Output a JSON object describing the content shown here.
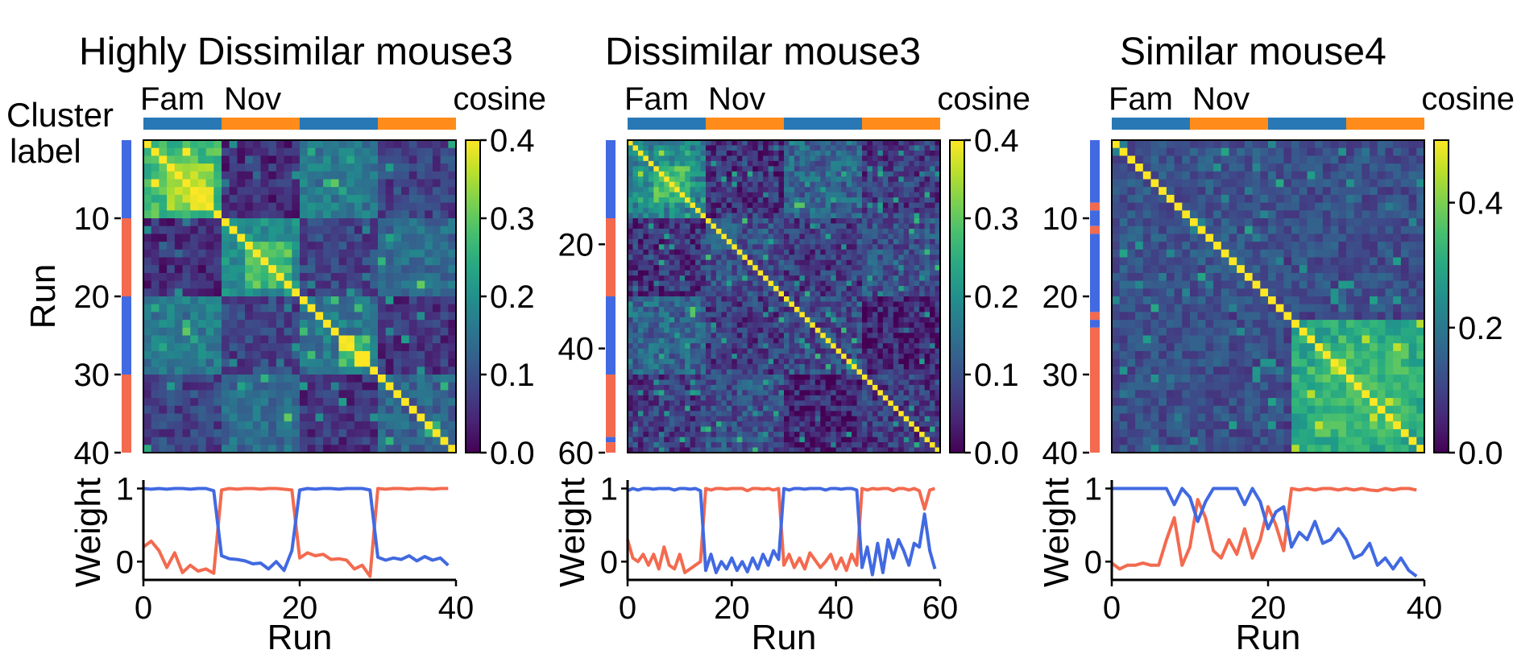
{
  "figure": {
    "side_label_line1": "Cluster",
    "side_label_line2": "label",
    "fam_label": "Fam",
    "nov_label": "Nov",
    "cbar_label": "cosine",
    "colors": {
      "fam_bar": "#2878b5",
      "nov_bar": "#ff8c1a",
      "fam_text": "#2b7bba",
      "nov_text": "#f28a1c",
      "cluster_blue": "#4169e1",
      "cluster_red": "#f36a4f",
      "weight_blue": "#4169e1",
      "weight_red": "#f36a4f"
    }
  },
  "chart_data": [
    {
      "type": "heatmap",
      "title": "Highly Dissimilar mouse3",
      "n": 40,
      "ylabel": "Run",
      "yticks": [
        10,
        20,
        30,
        40
      ],
      "cbar_range": [
        0,
        0.4
      ],
      "cbar_ticks": [
        "0.0",
        "0.1",
        "0.2",
        "0.3",
        "0.4"
      ],
      "cbar_tick_values": [
        0,
        0.1,
        0.2,
        0.3,
        0.4
      ],
      "blocks": [
        {
          "start": 0,
          "end": 10,
          "type": "fam"
        },
        {
          "start": 10,
          "end": 20,
          "type": "nov"
        },
        {
          "start": 20,
          "end": 30,
          "type": "fam"
        },
        {
          "start": 30,
          "end": 40,
          "type": "nov"
        }
      ],
      "clusters": [
        {
          "start": 0,
          "end": 10,
          "label": "blue"
        },
        {
          "start": 10,
          "end": 20,
          "label": "red"
        },
        {
          "start": 20,
          "end": 30,
          "label": "blue"
        },
        {
          "start": 30,
          "end": 40,
          "label": "red"
        }
      ],
      "matrix": {
        "diag": 0.4,
        "bg": 0.08,
        "noise": 0.045,
        "seed": 11,
        "blocks": [
          {
            "r": [
              0,
              10
            ],
            "c": [
              0,
              10
            ],
            "v": 0.27
          },
          {
            "r": [
              3,
              9
            ],
            "c": [
              3,
              9
            ],
            "v": 0.35
          },
          {
            "r": [
              10,
              20
            ],
            "c": [
              10,
              20
            ],
            "v": 0.2
          },
          {
            "r": [
              13,
              19
            ],
            "c": [
              13,
              19
            ],
            "v": 0.28
          },
          {
            "r": [
              20,
              30
            ],
            "c": [
              20,
              30
            ],
            "v": 0.16
          },
          {
            "r": [
              25,
              29
            ],
            "c": [
              25,
              29
            ],
            "v": 0.27
          },
          {
            "r": [
              30,
              40
            ],
            "c": [
              30,
              40
            ],
            "v": 0.13
          },
          {
            "r": [
              0,
              10
            ],
            "c": [
              20,
              30
            ],
            "v": 0.16
          },
          {
            "r": [
              10,
              20
            ],
            "c": [
              30,
              40
            ],
            "v": 0.14
          },
          {
            "r": [
              0,
              10
            ],
            "c": [
              10,
              20
            ],
            "v": 0.05
          },
          {
            "r": [
              20,
              30
            ],
            "c": [
              30,
              40
            ],
            "v": 0.06
          }
        ]
      },
      "weight": {
        "ylabel": "Weight",
        "xlabel": "Run",
        "xlim": [
          0,
          40
        ],
        "ylim": [
          -0.25,
          1.05
        ],
        "xticks": [
          0,
          20,
          40
        ],
        "yticks": [
          0,
          1
        ],
        "blue": [
          1.0,
          0.99,
          1.0,
          0.99,
          1.0,
          1.0,
          0.99,
          1.0,
          1.0,
          0.97,
          0.08,
          0.04,
          0.03,
          0.01,
          -0.03,
          -0.02,
          -0.1,
          0.0,
          -0.12,
          0.15,
          0.98,
          1.0,
          0.99,
          1.0,
          1.0,
          0.99,
          1.0,
          1.0,
          1.0,
          0.98,
          0.06,
          0.02,
          0.05,
          0.03,
          0.08,
          0.01,
          0.07,
          0.02,
          0.05,
          -0.05
        ],
        "red": [
          0.2,
          0.28,
          0.15,
          -0.08,
          0.12,
          -0.15,
          -0.05,
          -0.13,
          -0.1,
          -0.16,
          0.98,
          1.0,
          0.99,
          1.0,
          1.0,
          0.99,
          1.0,
          1.0,
          0.99,
          0.98,
          0.05,
          0.12,
          0.08,
          0.1,
          0.03,
          0.04,
          0.02,
          -0.1,
          -0.05,
          -0.2,
          1.0,
          0.99,
          1.0,
          1.0,
          0.99,
          1.0,
          1.0,
          0.99,
          1.0,
          1.0
        ]
      }
    },
    {
      "type": "heatmap",
      "title": "Dissimilar mouse3",
      "n": 60,
      "ylabel": "",
      "yticks": [
        20,
        40,
        60
      ],
      "cbar_range": [
        0,
        0.4
      ],
      "cbar_ticks": [
        "0.0",
        "0.1",
        "0.2",
        "0.3",
        "0.4"
      ],
      "cbar_tick_values": [
        0,
        0.1,
        0.2,
        0.3,
        0.4
      ],
      "blocks": [
        {
          "start": 0,
          "end": 15,
          "type": "fam"
        },
        {
          "start": 15,
          "end": 30,
          "type": "nov"
        },
        {
          "start": 30,
          "end": 45,
          "type": "fam"
        },
        {
          "start": 45,
          "end": 60,
          "type": "nov"
        }
      ],
      "clusters": [
        {
          "start": 0,
          "end": 15,
          "label": "blue"
        },
        {
          "start": 15,
          "end": 30,
          "label": "red"
        },
        {
          "start": 30,
          "end": 45,
          "label": "blue"
        },
        {
          "start": 45,
          "end": 57,
          "label": "red"
        },
        {
          "start": 57,
          "end": 58,
          "label": "blue"
        },
        {
          "start": 58,
          "end": 60,
          "label": "red"
        }
      ],
      "matrix": {
        "diag": 0.4,
        "bg": 0.07,
        "noise": 0.06,
        "seed": 23,
        "blocks": [
          {
            "r": [
              0,
              15
            ],
            "c": [
              0,
              15
            ],
            "v": 0.18
          },
          {
            "r": [
              5,
              12
            ],
            "c": [
              5,
              12
            ],
            "v": 0.27
          },
          {
            "r": [
              15,
              30
            ],
            "c": [
              15,
              30
            ],
            "v": 0.1
          },
          {
            "r": [
              30,
              45
            ],
            "c": [
              30,
              45
            ],
            "v": 0.09
          },
          {
            "r": [
              45,
              60
            ],
            "c": [
              45,
              60
            ],
            "v": 0.07
          },
          {
            "r": [
              0,
              15
            ],
            "c": [
              30,
              45
            ],
            "v": 0.13
          },
          {
            "r": [
              15,
              30
            ],
            "c": [
              45,
              60
            ],
            "v": 0.1
          },
          {
            "r": [
              30,
              45
            ],
            "c": [
              45,
              60
            ],
            "v": 0.04
          },
          {
            "r": [
              0,
              15
            ],
            "c": [
              15,
              30
            ],
            "v": 0.06
          }
        ]
      },
      "weight": {
        "ylabel": "Weight",
        "xlabel": "Run",
        "xlim": [
          0,
          60
        ],
        "ylim": [
          -0.25,
          1.05
        ],
        "xticks": [
          0,
          20,
          40,
          60
        ],
        "yticks": [
          0,
          1
        ],
        "blue": [
          0.97,
          1.0,
          0.98,
          1.0,
          1.0,
          0.99,
          1.0,
          1.0,
          1.0,
          0.98,
          1.0,
          1.0,
          0.99,
          1.0,
          0.97,
          -0.12,
          0.1,
          -0.15,
          0.0,
          -0.1,
          0.05,
          -0.12,
          0.0,
          -0.14,
          0.05,
          -0.1,
          0.1,
          -0.05,
          0.15,
          0.03,
          1.0,
          0.98,
          1.0,
          1.0,
          0.99,
          1.0,
          1.0,
          1.0,
          0.98,
          1.0,
          1.0,
          0.99,
          1.0,
          1.0,
          0.98,
          -0.08,
          0.2,
          -0.18,
          0.25,
          -0.15,
          0.3,
          0.05,
          0.3,
          0.15,
          -0.05,
          0.25,
          0.2,
          0.65,
          0.15,
          -0.1
        ],
        "red": [
          0.3,
          0.05,
          0.0,
          0.1,
          -0.05,
          0.1,
          -0.1,
          0.2,
          -0.05,
          -0.1,
          0.1,
          -0.15,
          -0.1,
          -0.05,
          0.0,
          1.0,
          0.98,
          1.0,
          1.0,
          0.99,
          1.0,
          1.0,
          1.0,
          0.97,
          1.0,
          1.0,
          0.99,
          1.0,
          0.98,
          1.0,
          -0.05,
          0.1,
          -0.08,
          0.05,
          -0.1,
          0.12,
          0.02,
          -0.08,
          0.0,
          0.1,
          -0.1,
          0.05,
          -0.12,
          0.1,
          -0.05,
          1.0,
          0.98,
          1.0,
          0.99,
          1.0,
          1.0,
          0.97,
          1.0,
          1.0,
          0.98,
          1.0,
          0.97,
          0.72,
          0.98,
          1.0
        ]
      }
    },
    {
      "type": "heatmap",
      "title": "Similar mouse4",
      "n": 40,
      "ylabel": "",
      "yticks": [
        10,
        20,
        30,
        40
      ],
      "cbar_range": [
        0,
        0.5
      ],
      "cbar_ticks": [
        "0.0",
        "0.2",
        "0.4"
      ],
      "cbar_tick_values": [
        0,
        0.2,
        0.4
      ],
      "blocks": [
        {
          "start": 0,
          "end": 10,
          "type": "fam"
        },
        {
          "start": 10,
          "end": 20,
          "type": "nov"
        },
        {
          "start": 20,
          "end": 30,
          "type": "fam"
        },
        {
          "start": 30,
          "end": 40,
          "type": "nov"
        }
      ],
      "clusters": [
        {
          "start": 0,
          "end": 8,
          "label": "blue"
        },
        {
          "start": 8,
          "end": 9,
          "label": "red"
        },
        {
          "start": 9,
          "end": 11,
          "label": "blue"
        },
        {
          "start": 11,
          "end": 12,
          "label": "red"
        },
        {
          "start": 12,
          "end": 22,
          "label": "blue"
        },
        {
          "start": 22,
          "end": 23,
          "label": "red"
        },
        {
          "start": 23,
          "end": 24,
          "label": "blue"
        },
        {
          "start": 24,
          "end": 40,
          "label": "red"
        }
      ],
      "matrix": {
        "diag": 0.5,
        "bg": 0.11,
        "noise": 0.05,
        "seed": 37,
        "blocks": [
          {
            "r": [
              0,
              22
            ],
            "c": [
              0,
              22
            ],
            "v": 0.13
          },
          {
            "r": [
              23,
              40
            ],
            "c": [
              23,
              40
            ],
            "v": 0.3
          },
          {
            "r": [
              26,
              38
            ],
            "c": [
              26,
              38
            ],
            "v": 0.34
          },
          {
            "r": [
              0,
              22
            ],
            "c": [
              23,
              40
            ],
            "v": 0.12
          }
        ]
      },
      "weight": {
        "ylabel": "Weight",
        "xlabel": "Run",
        "xlim": [
          0,
          40
        ],
        "ylim": [
          -0.25,
          1.05
        ],
        "xticks": [
          0,
          20,
          40
        ],
        "yticks": [
          0,
          1
        ],
        "blue": [
          1.0,
          1.0,
          1.0,
          1.0,
          1.0,
          1.0,
          1.0,
          1.0,
          0.78,
          1.0,
          0.88,
          0.55,
          0.82,
          1.0,
          1.0,
          1.0,
          1.0,
          0.78,
          1.0,
          0.82,
          0.45,
          0.68,
          0.75,
          0.2,
          0.4,
          0.3,
          0.55,
          0.25,
          0.3,
          0.45,
          0.3,
          0.05,
          0.1,
          0.25,
          -0.05,
          0.05,
          -0.1,
          0.05,
          -0.12,
          -0.2
        ],
        "red": [
          -0.02,
          -0.1,
          -0.05,
          -0.05,
          -0.02,
          -0.05,
          -0.05,
          0.3,
          0.6,
          -0.05,
          0.2,
          0.85,
          0.6,
          0.15,
          0.05,
          0.3,
          0.1,
          0.45,
          0.05,
          0.3,
          0.75,
          0.5,
          0.15,
          1.0,
          0.98,
          1.0,
          0.98,
          1.0,
          1.0,
          0.98,
          1.0,
          0.98,
          1.0,
          0.98,
          0.97,
          1.0,
          0.98,
          1.0,
          1.0,
          0.98
        ]
      }
    }
  ]
}
